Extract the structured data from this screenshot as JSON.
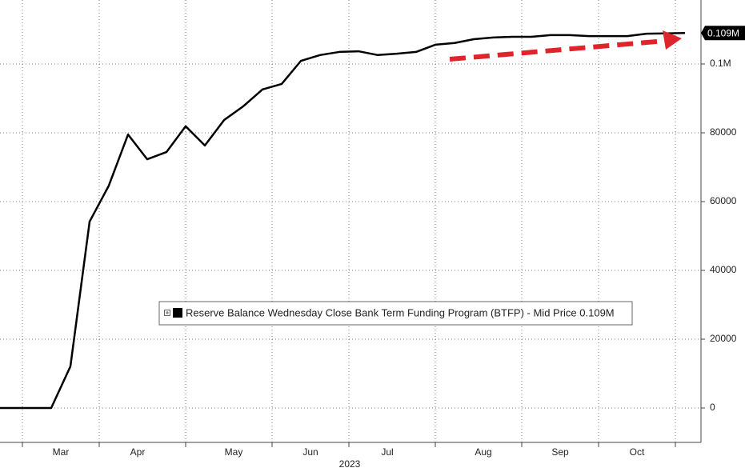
{
  "chart_data": {
    "type": "line",
    "xlabel": "2023",
    "categories": [
      null,
      null,
      "Mar",
      null,
      null,
      null,
      "Apr",
      null,
      null,
      null,
      null,
      "May",
      null,
      null,
      null,
      "Jun",
      null,
      null,
      null,
      "Jul",
      null,
      null,
      null,
      null,
      "Aug",
      null,
      null,
      null,
      "Sep",
      null,
      null,
      null,
      "Oct",
      null,
      null,
      null
    ],
    "series": [
      {
        "name": "Reserve Balance Wednesday Close Bank Term Funding Program (BTFP) - Mid Price 0.109M",
        "color": "#000000",
        "values": [
          0,
          0,
          0,
          12100,
          54200,
          64650,
          79500,
          72300,
          74400,
          81900,
          76300,
          83700,
          87700,
          92600,
          94200,
          100900,
          102600,
          103500,
          103700,
          102600,
          103000,
          103500,
          105600,
          106100,
          107200,
          107700,
          107900,
          107900,
          108400,
          108400,
          108100,
          108100,
          108100,
          108800,
          108900,
          109000
        ]
      }
    ],
    "last_label": "0.109M",
    "ylim": [
      -10000,
      118600
    ],
    "yticks": [
      0,
      20000,
      40000,
      60000,
      80000,
      {
        "value": 100000,
        "label": "0.1M"
      }
    ],
    "grid": true
  }
}
